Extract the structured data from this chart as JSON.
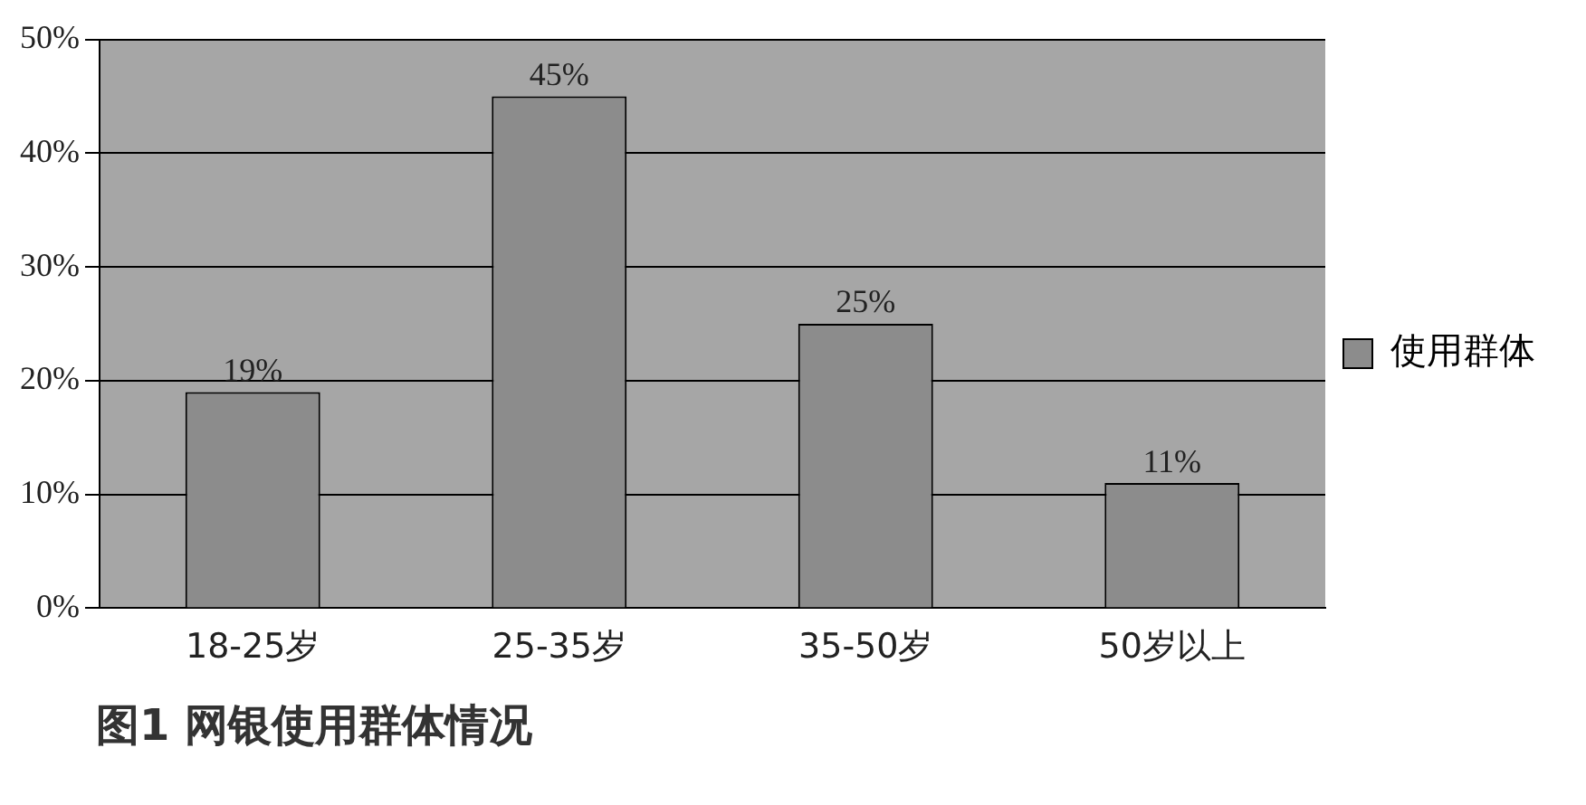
{
  "chart_data": {
    "type": "bar",
    "title": "图1  网银使用群体情况",
    "categories": [
      "18-25岁",
      "25-35岁",
      "35-50岁",
      "50岁以上"
    ],
    "series": [
      {
        "name": "使用群体",
        "color": "#8c8c8c",
        "values": [
          19,
          45,
          25,
          11
        ],
        "value_labels": [
          "19%",
          "45%",
          "25%",
          "11%"
        ]
      }
    ],
    "ylim": [
      0,
      50
    ],
    "yticks": [
      {
        "value": 0,
        "label": "0%"
      },
      {
        "value": 10,
        "label": "10%"
      },
      {
        "value": 20,
        "label": "20%"
      },
      {
        "value": 30,
        "label": "30%"
      },
      {
        "value": 40,
        "label": "40%"
      },
      {
        "value": 50,
        "label": "50%"
      }
    ],
    "grid": "y",
    "legend": "right"
  }
}
